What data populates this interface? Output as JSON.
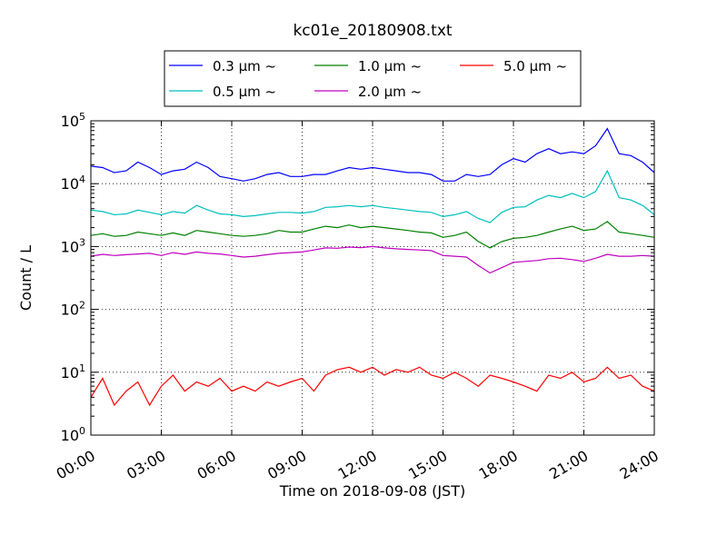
{
  "chart_data": {
    "type": "line",
    "title": "kc01e_20180908.txt",
    "xlabel": "Time on 2018-09-08 (JST)",
    "ylabel": "Count / L",
    "yscale": "log",
    "xlim": [
      0,
      24
    ],
    "ylim": [
      1,
      100000
    ],
    "grid": true,
    "legend_position": "top-center",
    "x_tick_labels": [
      "00:00",
      "03:00",
      "06:00",
      "09:00",
      "12:00",
      "15:00",
      "18:00",
      "21:00",
      "24:00"
    ],
    "y_tick_labels": [
      {
        "base": "10",
        "exp": "0"
      },
      {
        "base": "10",
        "exp": "1"
      },
      {
        "base": "10",
        "exp": "2"
      },
      {
        "base": "10",
        "exp": "3"
      },
      {
        "base": "10",
        "exp": "4"
      },
      {
        "base": "10",
        "exp": "5"
      }
    ],
    "x": [
      0.0,
      0.5,
      1.0,
      1.5,
      2.0,
      2.5,
      3.0,
      3.5,
      4.0,
      4.5,
      5.0,
      5.5,
      6.0,
      6.5,
      7.0,
      7.5,
      8.0,
      8.5,
      9.0,
      9.5,
      10.0,
      10.5,
      11.0,
      11.5,
      12.0,
      12.5,
      13.0,
      13.5,
      14.0,
      14.5,
      15.0,
      15.5,
      16.0,
      16.5,
      17.0,
      17.5,
      18.0,
      18.5,
      19.0,
      19.5,
      20.0,
      20.5,
      21.0,
      21.5,
      22.0,
      22.5,
      23.0,
      23.5,
      24.0
    ],
    "series": [
      {
        "name": "0.3 μm ~",
        "color": "#0000ff",
        "values": [
          19000,
          18000,
          15000,
          16000,
          22000,
          18000,
          14000,
          16000,
          17000,
          22000,
          18000,
          13000,
          12000,
          11000,
          12000,
          14000,
          15000,
          13000,
          13000,
          14000,
          14000,
          16000,
          18000,
          17000,
          18000,
          17000,
          16000,
          15000,
          15000,
          14000,
          11000,
          11000,
          14000,
          13000,
          14000,
          20000,
          25000,
          22000,
          30000,
          36000,
          30000,
          32000,
          30000,
          40000,
          75000,
          30000,
          28000,
          22000,
          15000
        ]
      },
      {
        "name": "0.5 μm ~",
        "color": "#00bfbf",
        "values": [
          3800,
          3600,
          3200,
          3300,
          3800,
          3500,
          3200,
          3600,
          3400,
          4500,
          3800,
          3300,
          3200,
          3000,
          3100,
          3300,
          3500,
          3500,
          3400,
          3600,
          4200,
          4300,
          4500,
          4300,
          4500,
          4200,
          4000,
          3800,
          3600,
          3500,
          3000,
          3200,
          3600,
          2800,
          2400,
          3500,
          4200,
          4300,
          5500,
          6500,
          6000,
          7000,
          6000,
          7500,
          16000,
          6000,
          5500,
          4500,
          3200
        ]
      },
      {
        "name": "1.0 μm ~",
        "color": "#008000",
        "values": [
          1500,
          1600,
          1450,
          1500,
          1700,
          1600,
          1500,
          1650,
          1500,
          1800,
          1700,
          1600,
          1500,
          1450,
          1500,
          1600,
          1800,
          1700,
          1700,
          1900,
          2100,
          2000,
          2200,
          2000,
          2100,
          2000,
          1900,
          1800,
          1700,
          1650,
          1400,
          1500,
          1700,
          1200,
          950,
          1200,
          1350,
          1400,
          1500,
          1700,
          1900,
          2100,
          1800,
          1900,
          2500,
          1700,
          1600,
          1500,
          1400
        ]
      },
      {
        "name": "2.0 μm ~",
        "color": "#bf00bf",
        "values": [
          700,
          750,
          720,
          740,
          760,
          780,
          720,
          800,
          750,
          820,
          780,
          760,
          720,
          680,
          700,
          740,
          780,
          800,
          820,
          880,
          950,
          940,
          980,
          960,
          1000,
          950,
          920,
          900,
          880,
          860,
          720,
          700,
          680,
          500,
          380,
          460,
          560,
          580,
          600,
          640,
          650,
          620,
          580,
          650,
          750,
          700,
          700,
          720,
          700
        ]
      },
      {
        "name": "5.0 μm ~",
        "color": "#ff0000",
        "values": [
          4,
          8,
          3,
          5,
          7,
          3,
          6,
          9,
          5,
          7,
          6,
          8,
          5,
          6,
          5,
          7,
          6,
          7,
          8,
          5,
          9,
          11,
          12,
          10,
          12,
          9,
          11,
          10,
          12,
          9,
          8,
          10,
          8,
          6,
          9,
          8,
          7,
          6,
          5,
          9,
          8,
          10,
          7,
          8,
          12,
          8,
          9,
          6,
          5
        ]
      }
    ]
  }
}
